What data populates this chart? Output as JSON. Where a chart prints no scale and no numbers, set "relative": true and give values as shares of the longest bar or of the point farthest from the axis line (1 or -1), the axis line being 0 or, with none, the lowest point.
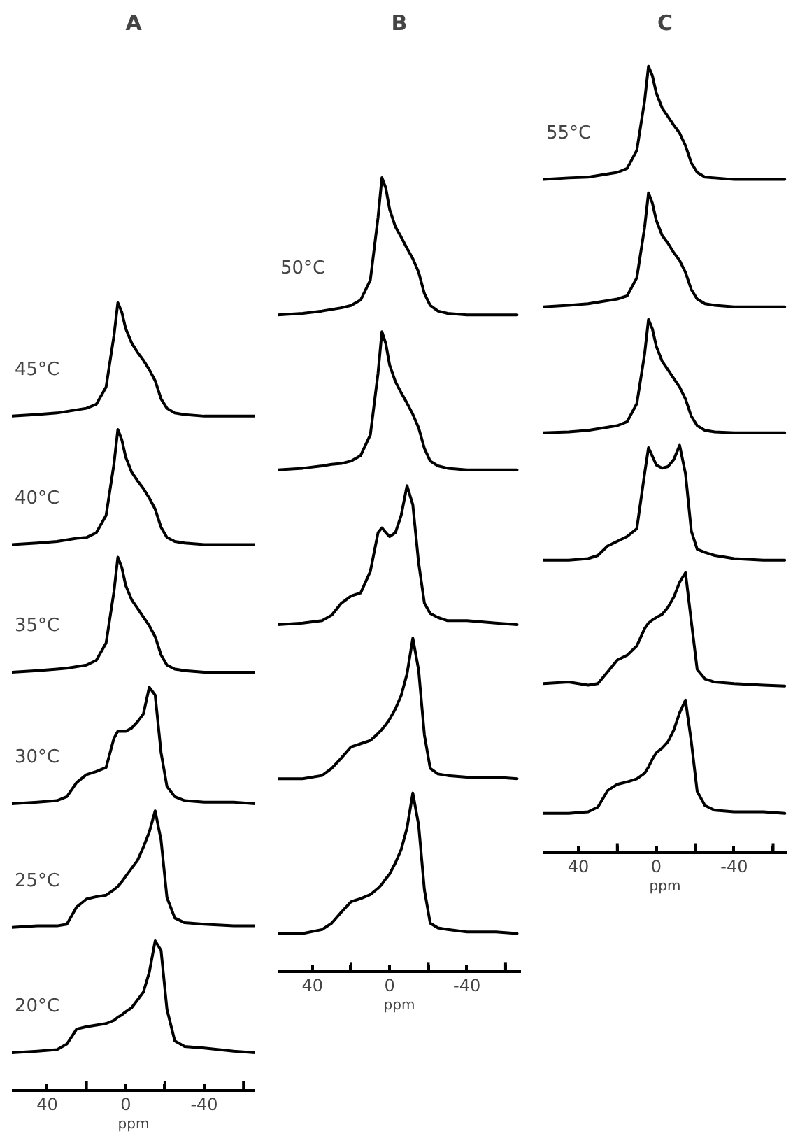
{
  "chart_data": [
    {
      "type": "line",
      "title": "A",
      "xlabel": "ppm",
      "relative": true,
      "xlim": [
        58,
        -66
      ],
      "xticks": [
        40,
        {
          "value": 20,
          "label": null
        },
        0,
        {
          "value": -20,
          "label": null
        },
        -40,
        {
          "value": -60,
          "label": null
        }
      ],
      "x": [
        58,
        45,
        35,
        30,
        25,
        20,
        15,
        10,
        6,
        4,
        2,
        0,
        -3,
        -6,
        -9,
        -12,
        -15,
        -18,
        -21,
        -25,
        -30,
        -40,
        -55,
        -66
      ],
      "series": [
        {
          "name": "20°C",
          "color": "#000000",
          "values": [
            0.048,
            0.05,
            0.052,
            0.059,
            0.078,
            0.081,
            0.083,
            0.085,
            0.089,
            0.093,
            0.096,
            0.1,
            0.105,
            0.115,
            0.125,
            0.15,
            0.19,
            0.178,
            0.103,
            0.063,
            0.056,
            0.054,
            0.05,
            0.048
          ]
        },
        {
          "name": "25°C",
          "color": "#000000",
          "values": [
            0.207,
            0.209,
            0.209,
            0.211,
            0.233,
            0.243,
            0.246,
            0.248,
            0.255,
            0.259,
            0.265,
            0.272,
            0.282,
            0.292,
            0.309,
            0.328,
            0.355,
            0.318,
            0.245,
            0.219,
            0.213,
            0.211,
            0.209,
            0.209
          ]
        },
        {
          "name": "30°C",
          "color": "#000000",
          "values": [
            0.364,
            0.366,
            0.368,
            0.373,
            0.391,
            0.401,
            0.405,
            0.41,
            0.447,
            0.456,
            0.456,
            0.456,
            0.46,
            0.468,
            0.478,
            0.512,
            0.502,
            0.429,
            0.386,
            0.373,
            0.368,
            0.366,
            0.366,
            0.364
          ]
        },
        {
          "name": "35°C",
          "color": "#000000",
          "values": [
            0.531,
            0.533,
            0.535,
            0.536,
            0.538,
            0.54,
            0.546,
            0.568,
            0.633,
            0.677,
            0.664,
            0.641,
            0.623,
            0.612,
            0.601,
            0.59,
            0.576,
            0.553,
            0.54,
            0.535,
            0.533,
            0.531,
            0.531,
            0.531
          ]
        },
        {
          "name": "40°C",
          "color": "#000000",
          "values": [
            0.693,
            0.695,
            0.697,
            0.699,
            0.701,
            0.702,
            0.708,
            0.73,
            0.795,
            0.839,
            0.826,
            0.804,
            0.785,
            0.774,
            0.764,
            0.752,
            0.738,
            0.715,
            0.702,
            0.697,
            0.695,
            0.693,
            0.693,
            0.693
          ]
        },
        {
          "name": "45°C",
          "color": "#000000",
          "values": [
            0.856,
            0.858,
            0.86,
            0.862,
            0.864,
            0.866,
            0.871,
            0.893,
            0.958,
            1.0,
            0.988,
            0.967,
            0.949,
            0.937,
            0.927,
            0.915,
            0.901,
            0.878,
            0.866,
            0.86,
            0.858,
            0.856,
            0.856,
            0.856
          ]
        }
      ]
    },
    {
      "type": "line",
      "title": "B",
      "xlabel": "ppm",
      "relative": true,
      "xlim": [
        58,
        -68
      ],
      "xticks": [
        40,
        {
          "value": 20,
          "label": null
        },
        0,
        {
          "value": -20,
          "label": null
        },
        -40,
        {
          "value": -60,
          "label": null
        }
      ],
      "x": [
        58,
        45,
        35,
        30,
        25,
        20,
        15,
        10,
        6,
        4,
        2,
        0,
        -3,
        -6,
        -9,
        -12,
        -15,
        -18,
        -21,
        -25,
        -30,
        -40,
        -55,
        -66
      ],
      "series": [
        {
          "color": "#000000",
          "values": [
            0.048,
            0.048,
            0.053,
            0.061,
            0.075,
            0.088,
            0.092,
            0.097,
            0.105,
            0.11,
            0.117,
            0.123,
            0.137,
            0.154,
            0.181,
            0.225,
            0.185,
            0.103,
            0.061,
            0.055,
            0.053,
            0.05,
            0.05,
            0.048
          ]
        },
        {
          "color": "#000000",
          "values": [
            0.243,
            0.243,
            0.247,
            0.256,
            0.269,
            0.283,
            0.287,
            0.291,
            0.3,
            0.305,
            0.311,
            0.318,
            0.331,
            0.348,
            0.375,
            0.42,
            0.38,
            0.298,
            0.256,
            0.249,
            0.247,
            0.245,
            0.245,
            0.243
          ]
        },
        {
          "color": "#000000",
          "values": [
            0.437,
            0.439,
            0.442,
            0.449,
            0.464,
            0.473,
            0.477,
            0.504,
            0.553,
            0.559,
            0.553,
            0.548,
            0.553,
            0.575,
            0.612,
            0.588,
            0.515,
            0.464,
            0.451,
            0.446,
            0.442,
            0.442,
            0.439,
            0.437
          ]
        },
        {
          "color": "#000000",
          "values": [
            0.632,
            0.634,
            0.637,
            0.639,
            0.64,
            0.643,
            0.65,
            0.676,
            0.754,
            0.806,
            0.791,
            0.764,
            0.743,
            0.729,
            0.716,
            0.702,
            0.685,
            0.659,
            0.643,
            0.637,
            0.634,
            0.632,
            0.632,
            0.632
          ]
        },
        {
          "name": "50°C",
          "color": "#000000",
          "values": [
            0.827,
            0.829,
            0.832,
            0.834,
            0.836,
            0.839,
            0.846,
            0.871,
            0.95,
            1.0,
            0.987,
            0.96,
            0.938,
            0.925,
            0.911,
            0.898,
            0.881,
            0.854,
            0.839,
            0.832,
            0.829,
            0.827,
            0.827,
            0.827
          ]
        }
      ]
    },
    {
      "type": "line",
      "title": "C",
      "xlabel": "ppm",
      "relative": true,
      "xlim": [
        58,
        -67
      ],
      "xticks": [
        40,
        {
          "value": 20,
          "label": null
        },
        0,
        {
          "value": -20,
          "label": null
        },
        -40,
        {
          "value": -60,
          "label": null
        }
      ],
      "x": [
        58,
        45,
        35,
        30,
        25,
        20,
        15,
        10,
        6,
        4,
        2,
        0,
        -3,
        -6,
        -9,
        -12,
        -15,
        -18,
        -21,
        -25,
        -30,
        -40,
        -55,
        -66
      ],
      "series": [
        {
          "color": "#000000",
          "values": [
            0.05,
            0.05,
            0.052,
            0.058,
            0.079,
            0.087,
            0.09,
            0.094,
            0.101,
            0.109,
            0.119,
            0.127,
            0.133,
            0.141,
            0.156,
            0.178,
            0.194,
            0.141,
            0.078,
            0.06,
            0.054,
            0.052,
            0.052,
            0.05
          ]
        },
        {
          "color": "#000000",
          "values": [
            0.215,
            0.217,
            0.213,
            0.215,
            0.23,
            0.245,
            0.251,
            0.263,
            0.285,
            0.292,
            0.296,
            0.299,
            0.303,
            0.312,
            0.325,
            0.344,
            0.356,
            0.294,
            0.233,
            0.221,
            0.217,
            0.215,
            0.213,
            0.212
          ]
        },
        {
          "color": "#000000",
          "values": [
            0.372,
            0.372,
            0.374,
            0.378,
            0.39,
            0.396,
            0.402,
            0.412,
            0.482,
            0.515,
            0.504,
            0.493,
            0.489,
            0.491,
            0.5,
            0.518,
            0.482,
            0.409,
            0.386,
            0.382,
            0.378,
            0.374,
            0.372,
            0.372
          ]
        },
        {
          "color": "#000000",
          "values": [
            0.534,
            0.535,
            0.537,
            0.539,
            0.541,
            0.543,
            0.548,
            0.571,
            0.634,
            0.678,
            0.666,
            0.644,
            0.625,
            0.614,
            0.603,
            0.592,
            0.577,
            0.555,
            0.543,
            0.537,
            0.535,
            0.534,
            0.534,
            0.534
          ]
        },
        {
          "color": "#000000",
          "values": [
            0.694,
            0.696,
            0.698,
            0.7,
            0.702,
            0.704,
            0.708,
            0.731,
            0.795,
            0.839,
            0.826,
            0.804,
            0.785,
            0.775,
            0.763,
            0.753,
            0.738,
            0.716,
            0.704,
            0.698,
            0.696,
            0.694,
            0.694,
            0.694
          ]
        },
        {
          "name": "55°C",
          "color": "#000000",
          "values": [
            0.856,
            0.858,
            0.859,
            0.861,
            0.863,
            0.865,
            0.87,
            0.893,
            0.956,
            1.0,
            0.988,
            0.966,
            0.947,
            0.936,
            0.925,
            0.915,
            0.899,
            0.877,
            0.865,
            0.859,
            0.858,
            0.856,
            0.856,
            0.856
          ]
        }
      ]
    }
  ]
}
